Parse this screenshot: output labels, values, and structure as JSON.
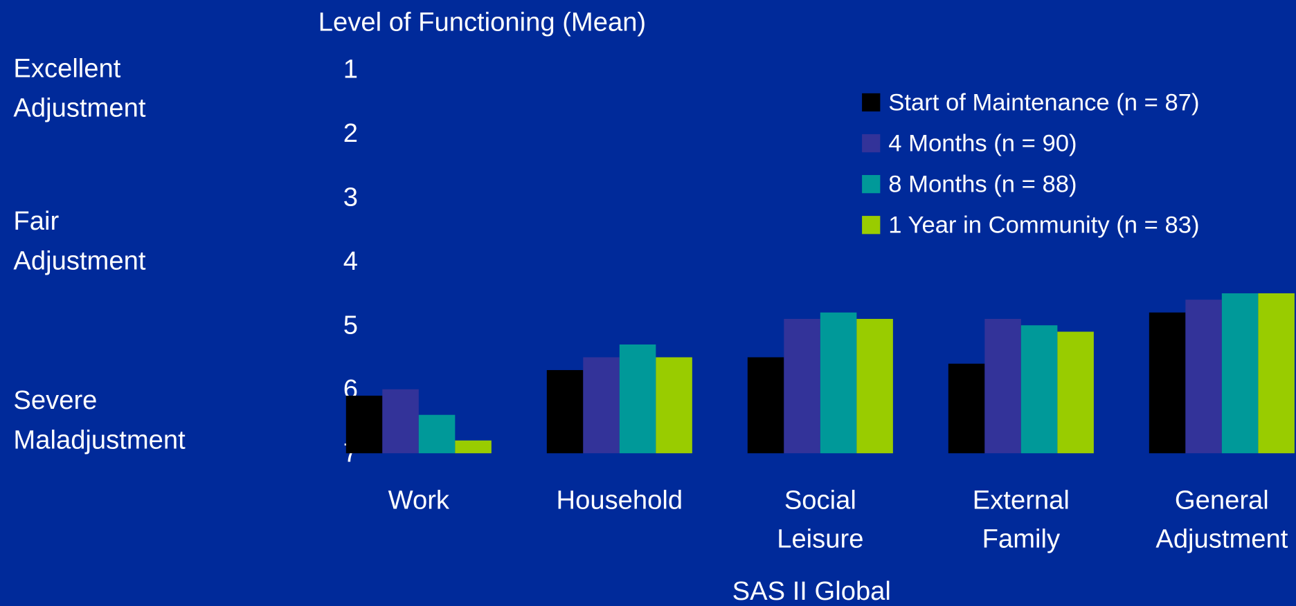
{
  "chart_data": {
    "type": "bar",
    "y_axis_title": "Level of Functioning (Mean)",
    "x_axis_title": "SAS II Global",
    "annotations": [
      "Excellent\nAdjustment",
      "Fair\nAdjustment",
      "Severe\nMaladjustment"
    ],
    "categories": [
      "Work",
      "Household",
      "Social\nLeisure",
      "External\nFamily",
      "General\nAdjustment"
    ],
    "series": [
      {
        "name": "Start of Maintenance (n = 87)",
        "color": "#000000",
        "values": [
          6.1,
          5.7,
          5.5,
          5.6,
          4.8
        ]
      },
      {
        "name": "4 Months (n = 90)",
        "color": "#333399",
        "values": [
          6.0,
          5.5,
          4.9,
          4.9,
          4.6
        ]
      },
      {
        "name": "8 Months (n = 88)",
        "color": "#009999",
        "values": [
          6.4,
          5.3,
          4.8,
          5.0,
          4.5
        ]
      },
      {
        "name": "1 Year in Community (n = 83)",
        "color": "#99cc00",
        "values": [
          6.8,
          5.5,
          4.9,
          5.1,
          4.5
        ]
      }
    ],
    "ylim": [
      7,
      1
    ],
    "yticks": [
      1,
      2,
      3,
      4,
      5,
      6,
      7
    ],
    "grid": false,
    "legend": "top-right"
  }
}
